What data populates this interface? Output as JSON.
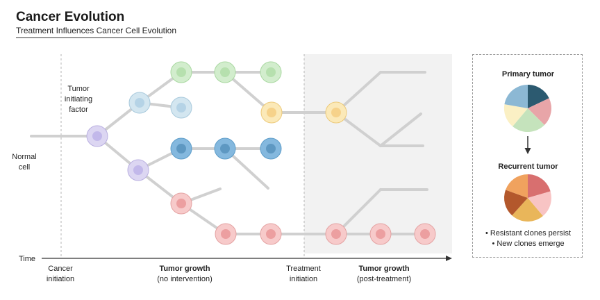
{
  "header": {
    "title": "Cancer Evolution",
    "subtitle": "Treatment Influences Cancer Cell Evolution"
  },
  "labels": {
    "normal_cell": [
      "Normal",
      "cell"
    ],
    "tumor_factor": [
      "Tumor",
      "initiating",
      "factor"
    ],
    "time": "Time"
  },
  "phases": [
    {
      "title": "Cancer",
      "subtitle": "initiation",
      "bold": false
    },
    {
      "title": "Tumor growth",
      "subtitle": "(no intervention)",
      "bold": true
    },
    {
      "title": "Treatment",
      "subtitle": "initiation",
      "bold": false
    },
    {
      "title": "Tumor growth",
      "subtitle": "(post-treatment)",
      "bold": true
    }
  ],
  "legend": {
    "primary_title": "Primary tumor",
    "recurrent_title": "Recurrent tumor",
    "bullets": [
      "• Resistant clones persist",
      "• New clones emerge"
    ]
  },
  "colors": {
    "purple": "#d9d3f0",
    "light_blue": "#cfe3ee",
    "green": "#cdebc8",
    "yellow": "#fbe7b4",
    "blue": "#7db4dc",
    "pink": "#f6c4c4",
    "branch": "#d0d0d0",
    "treatment_bg": "#f2f2f2",
    "primary_pie": [
      "#2c5a70",
      "#e8a5a8",
      "#c5e3bc",
      "#fbf0c4",
      "#8cb8d4"
    ],
    "recurrent_pie": [
      "#d86f6f",
      "#f8c4c4",
      "#e9b65a",
      "#b3582c",
      "#f0a25e"
    ]
  }
}
